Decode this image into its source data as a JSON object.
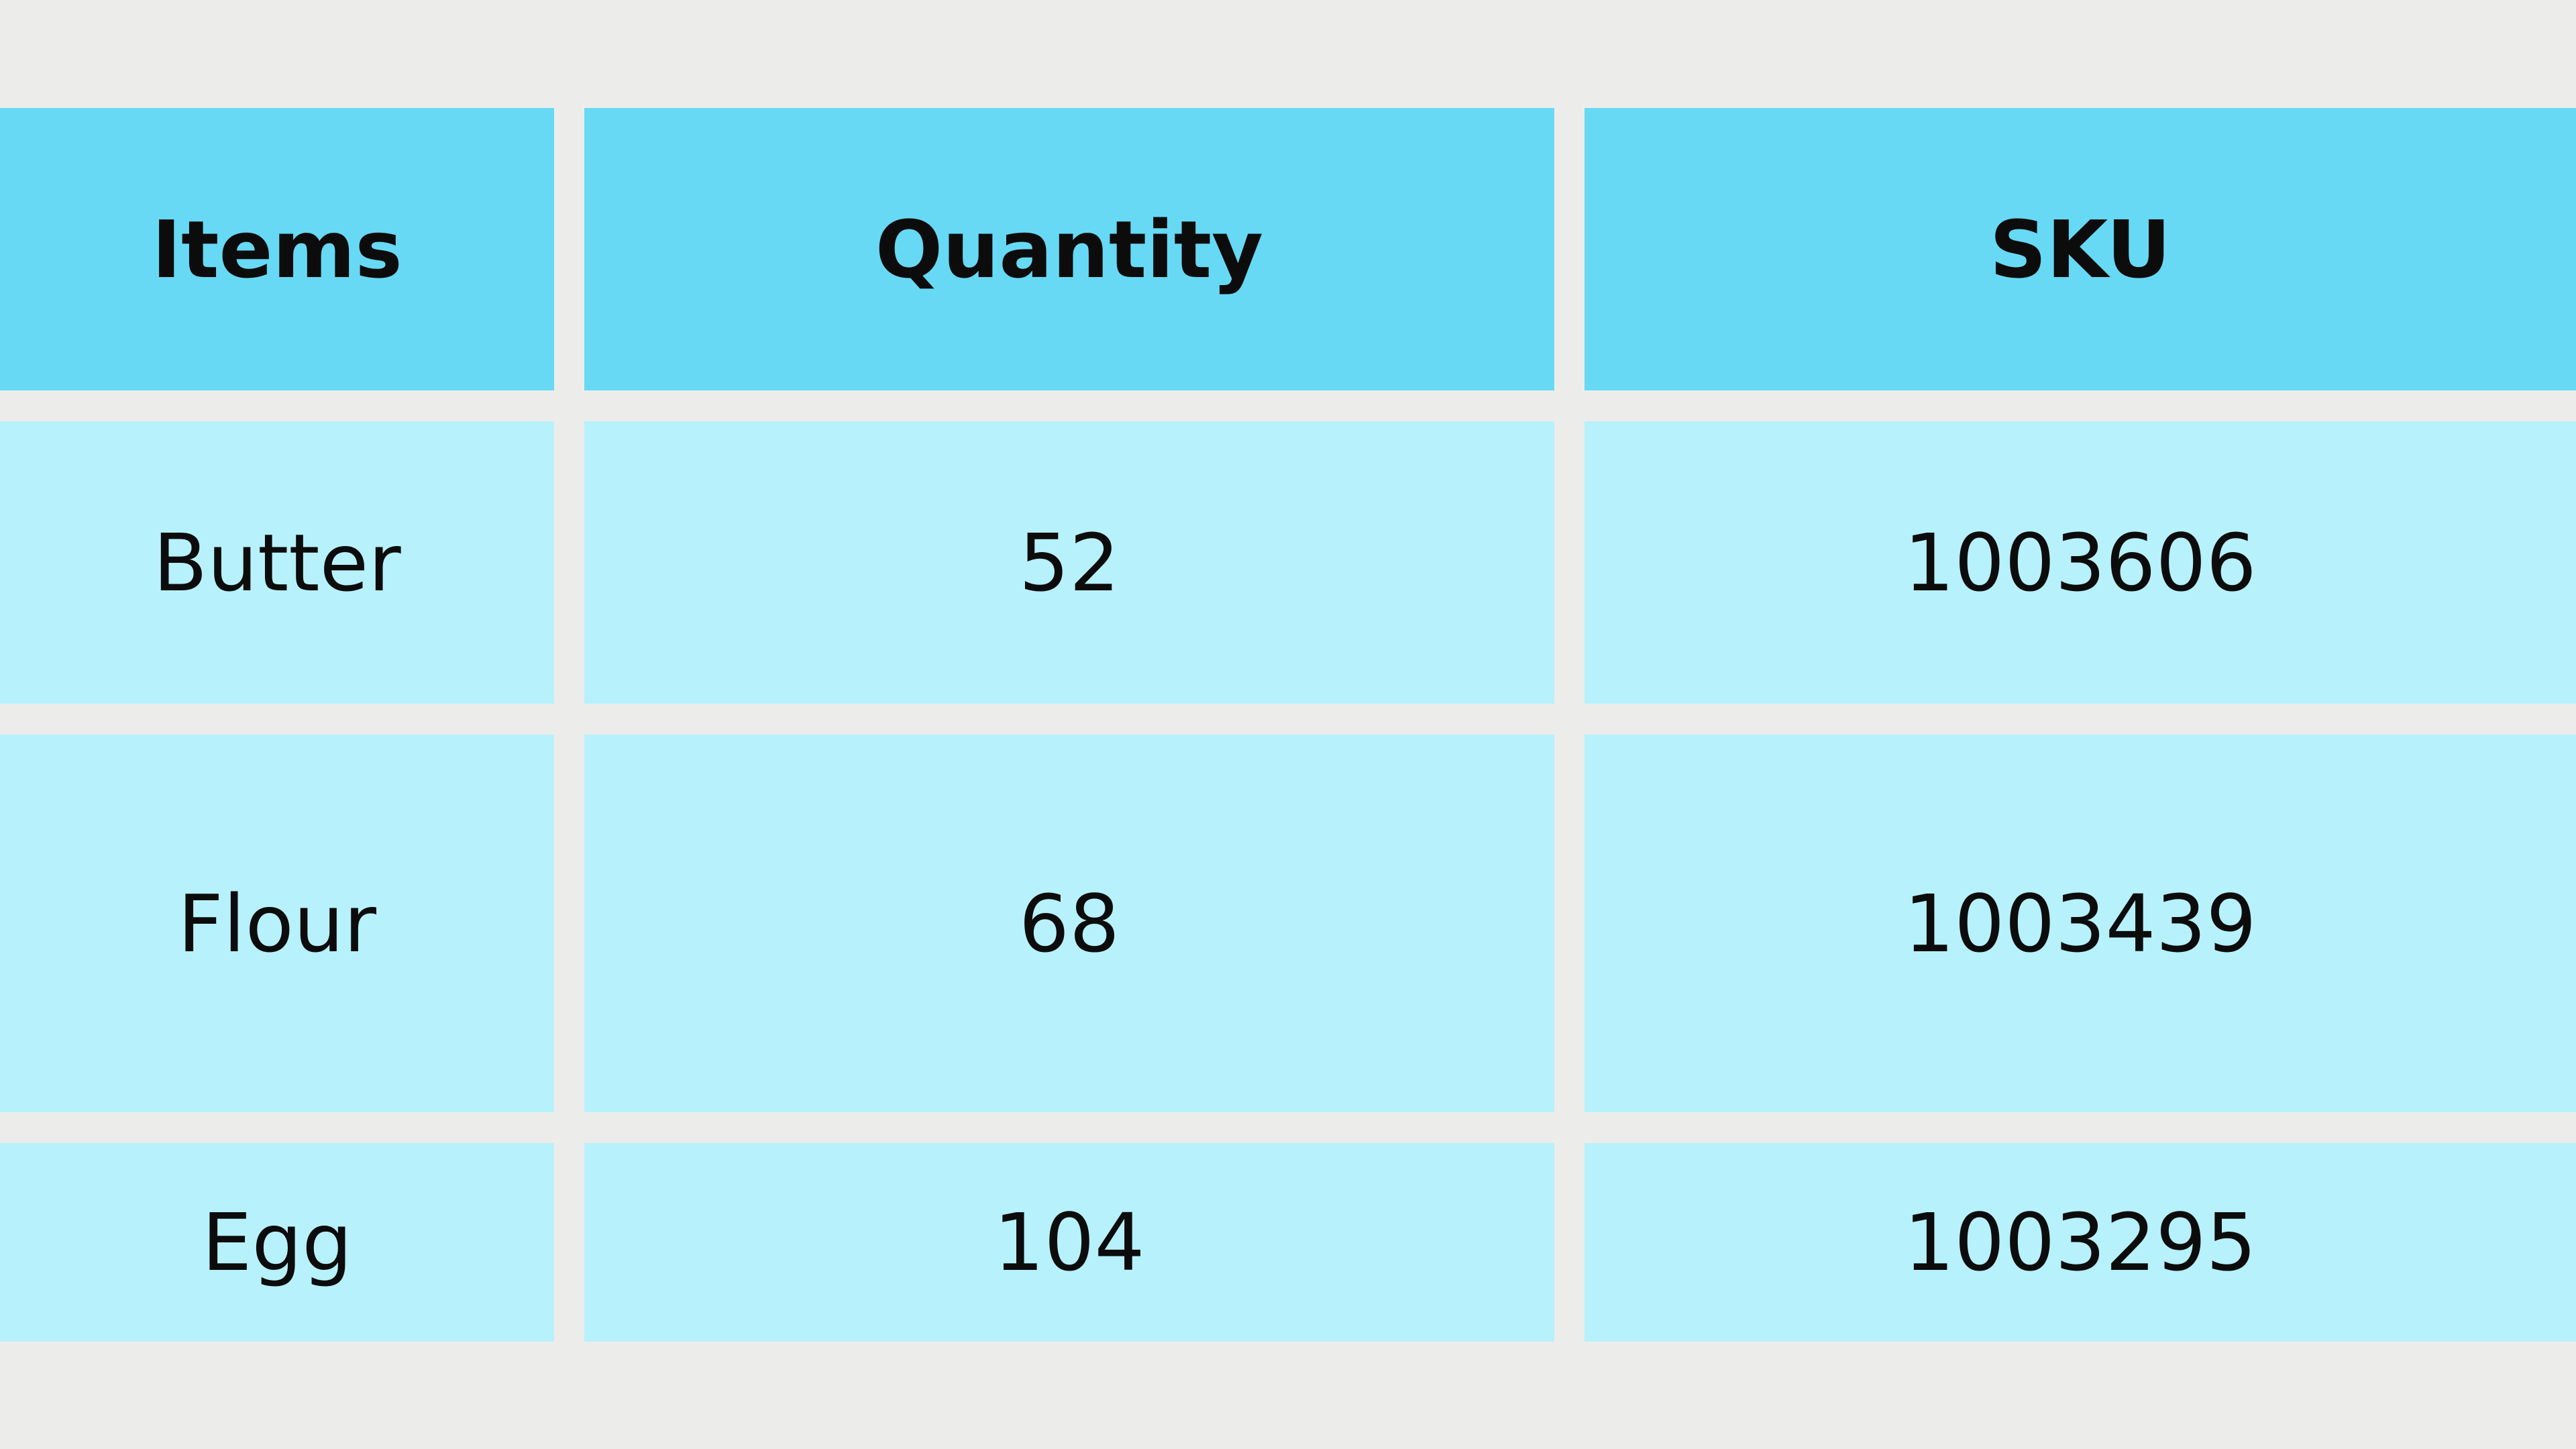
{
  "table": {
    "headers": [
      "Items",
      "Quantity",
      "SKU"
    ],
    "rows": [
      [
        "Butter",
        "52",
        "1003606"
      ],
      [
        "Flour",
        "68",
        "1003439"
      ],
      [
        "Egg",
        "104",
        "1003295"
      ]
    ]
  },
  "colors": {
    "background": "#ecedea",
    "header": "#67d9f4",
    "body": "#b7f1fc",
    "text": "#0c0c0c"
  }
}
